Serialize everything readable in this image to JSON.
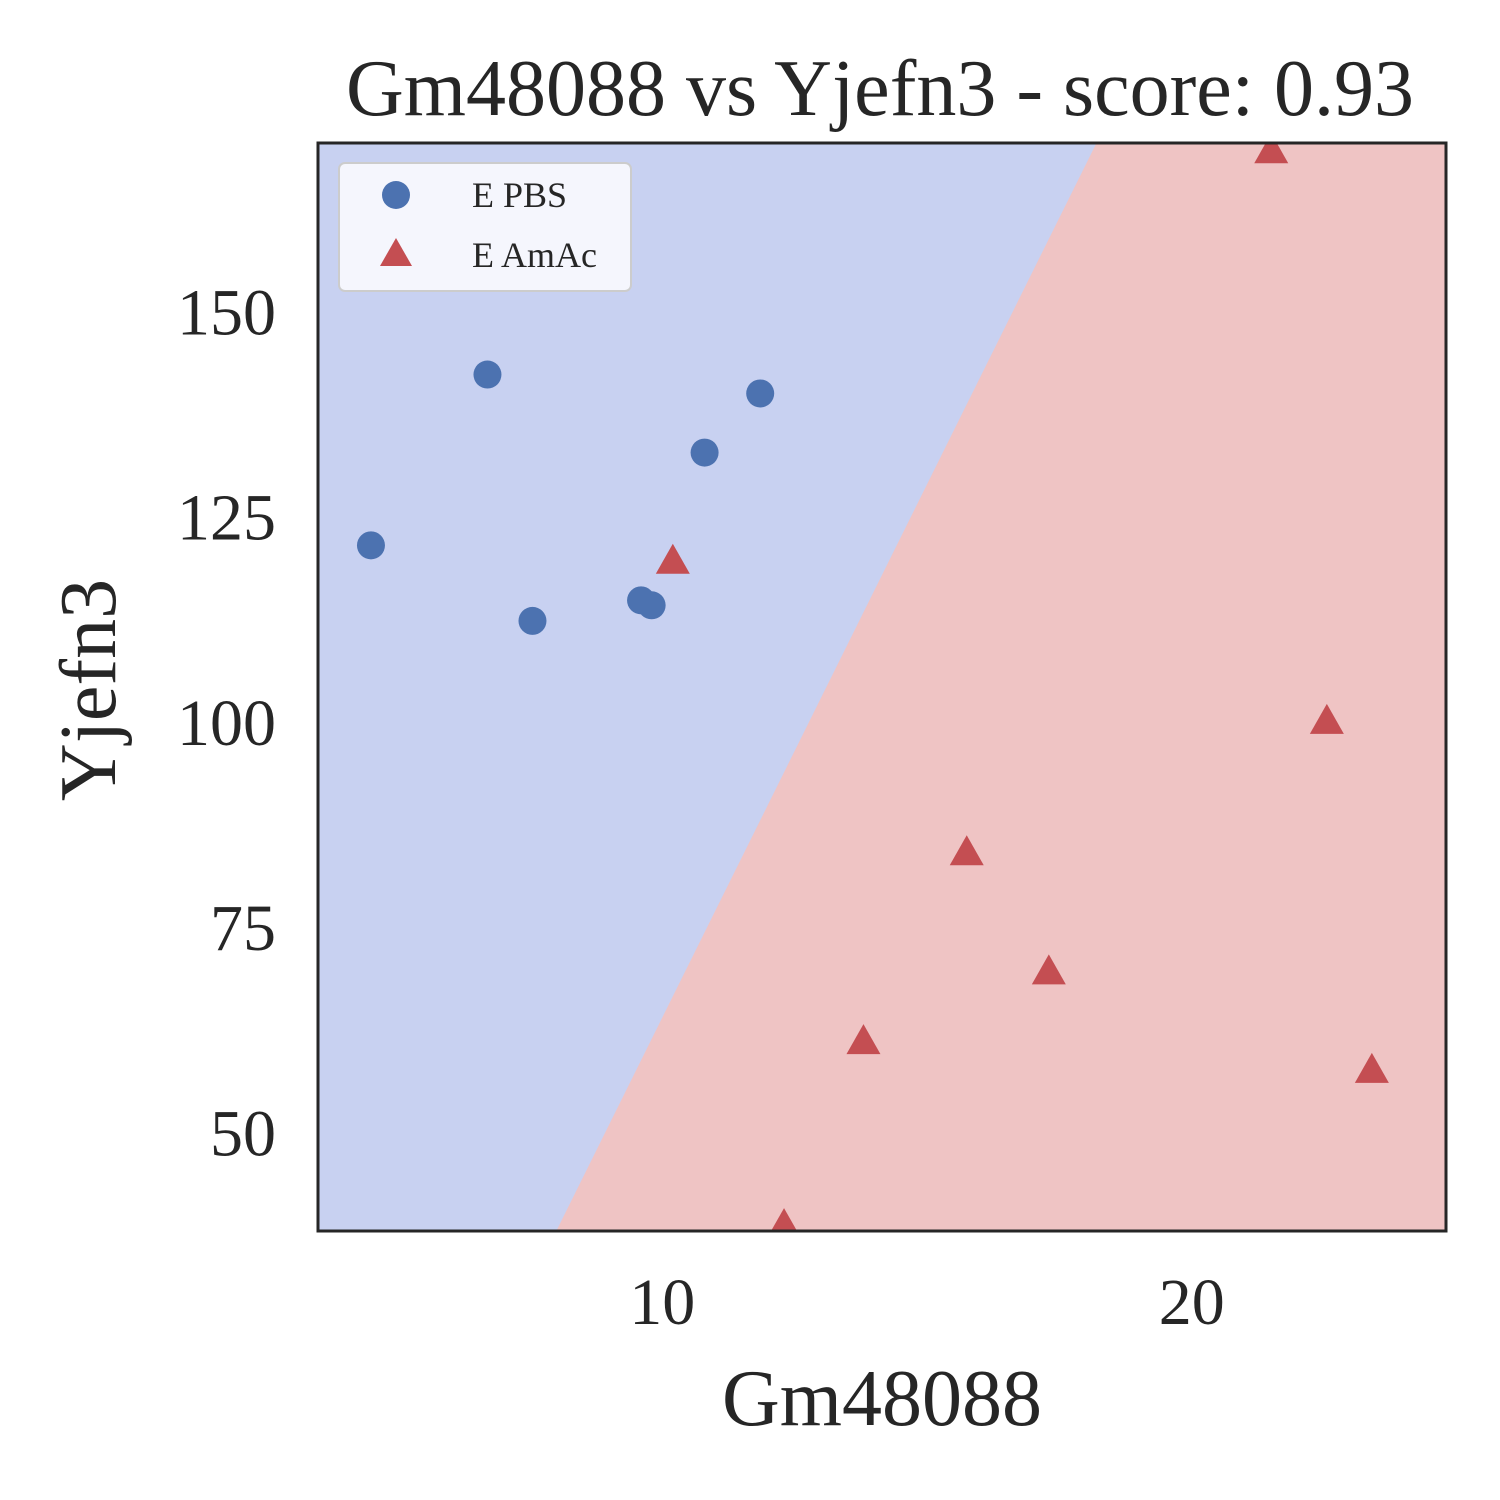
{
  "chart_data": {
    "type": "scatter",
    "title": "Gm48088 vs Yjefn3 - score: 0.93",
    "xlabel": "Gm48088",
    "ylabel": "Yjefn3",
    "xlim": [
      3.5,
      24.8
    ],
    "ylim": [
      38,
      170.5
    ],
    "xticks": [
      10,
      20
    ],
    "yticks": [
      50,
      75,
      100,
      125,
      150
    ],
    "grid": false,
    "legend_position": "top-left",
    "decision_boundary": {
      "line": [
        [
          8.0,
          38
        ],
        [
          18.2,
          170.5
        ]
      ],
      "left_region_color": "#c8d1f1",
      "right_region_color": "#efc4c4",
      "left_class": "E PBS",
      "right_class": "E AmAc"
    },
    "series": [
      {
        "name": "E PBS",
        "marker": "circle",
        "color": "#4c72b0",
        "points": [
          [
            4.5,
            121.5
          ],
          [
            6.7,
            142.3
          ],
          [
            7.55,
            112.3
          ],
          [
            9.6,
            114.8
          ],
          [
            9.8,
            114.2
          ],
          [
            10.8,
            132.8
          ],
          [
            11.85,
            140.0
          ]
        ]
      },
      {
        "name": "E AmAc",
        "marker": "triangle",
        "color": "#c44e52",
        "points": [
          [
            10.2,
            119.5
          ],
          [
            12.3,
            38.6
          ],
          [
            13.8,
            61.0
          ],
          [
            15.75,
            84.0
          ],
          [
            17.3,
            69.5
          ],
          [
            21.5,
            169.5
          ],
          [
            22.55,
            100.0
          ],
          [
            23.4,
            57.5
          ]
        ]
      }
    ]
  }
}
